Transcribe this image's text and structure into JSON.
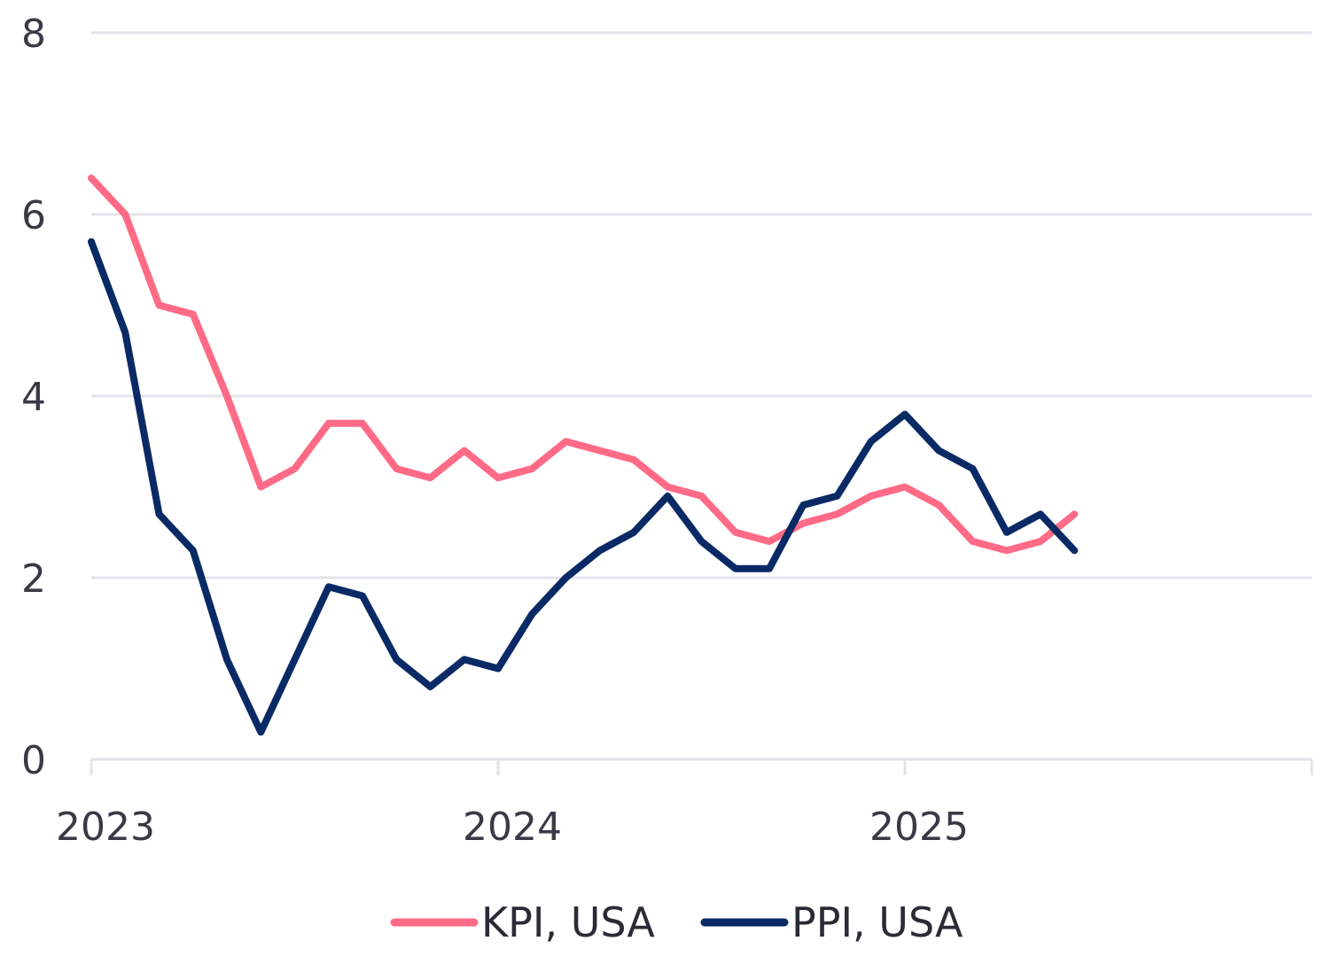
{
  "chart_data": {
    "type": "line",
    "title": "",
    "xlabel": "",
    "ylabel": "",
    "ylim": [
      0,
      8
    ],
    "yticks": [
      "0",
      "2",
      "4",
      "6",
      "8"
    ],
    "xlim": [
      "2023-01",
      "2026-01"
    ],
    "xticks": [
      {
        "label": "2023",
        "x": "2023-01"
      },
      {
        "label": "2024",
        "x": "2024-01"
      },
      {
        "label": "2025",
        "x": "2025-01"
      }
    ],
    "grid": true,
    "legend_position": "bottom",
    "series": [
      {
        "name": "KPI, USA",
        "color": "#ff6b86",
        "x": [
          "2023-01",
          "2023-02",
          "2023-03",
          "2023-04",
          "2023-05",
          "2023-06",
          "2023-07",
          "2023-08",
          "2023-09",
          "2023-10",
          "2023-11",
          "2023-12",
          "2024-01",
          "2024-02",
          "2024-03",
          "2024-04",
          "2024-05",
          "2024-06",
          "2024-07",
          "2024-08",
          "2024-09",
          "2024-10",
          "2024-11",
          "2024-12",
          "2025-01",
          "2025-02",
          "2025-03",
          "2025-04",
          "2025-05",
          "2025-06"
        ],
        "values": [
          6.4,
          6.0,
          5.0,
          4.9,
          4.0,
          3.0,
          3.2,
          3.7,
          3.7,
          3.2,
          3.1,
          3.4,
          3.1,
          3.2,
          3.5,
          3.4,
          3.3,
          3.0,
          2.9,
          2.5,
          2.4,
          2.6,
          2.7,
          2.9,
          3.0,
          2.8,
          2.4,
          2.3,
          2.4,
          2.7
        ]
      },
      {
        "name": "PPI, USA",
        "color": "#0a2a66",
        "x": [
          "2023-01",
          "2023-02",
          "2023-03",
          "2023-04",
          "2023-05",
          "2023-06",
          "2023-07",
          "2023-08",
          "2023-09",
          "2023-10",
          "2023-11",
          "2023-12",
          "2024-01",
          "2024-02",
          "2024-03",
          "2024-04",
          "2024-05",
          "2024-06",
          "2024-07",
          "2024-08",
          "2024-09",
          "2024-10",
          "2024-11",
          "2024-12",
          "2025-01",
          "2025-02",
          "2025-03",
          "2025-04",
          "2025-05",
          "2025-06"
        ],
        "values": [
          5.7,
          4.7,
          2.7,
          2.3,
          1.1,
          0.3,
          1.1,
          1.9,
          1.8,
          1.1,
          0.8,
          1.1,
          1.0,
          1.6,
          2.0,
          2.3,
          2.5,
          2.9,
          2.4,
          2.1,
          2.1,
          2.8,
          2.9,
          3.5,
          3.8,
          3.4,
          3.2,
          2.5,
          2.7,
          2.3
        ]
      }
    ]
  }
}
